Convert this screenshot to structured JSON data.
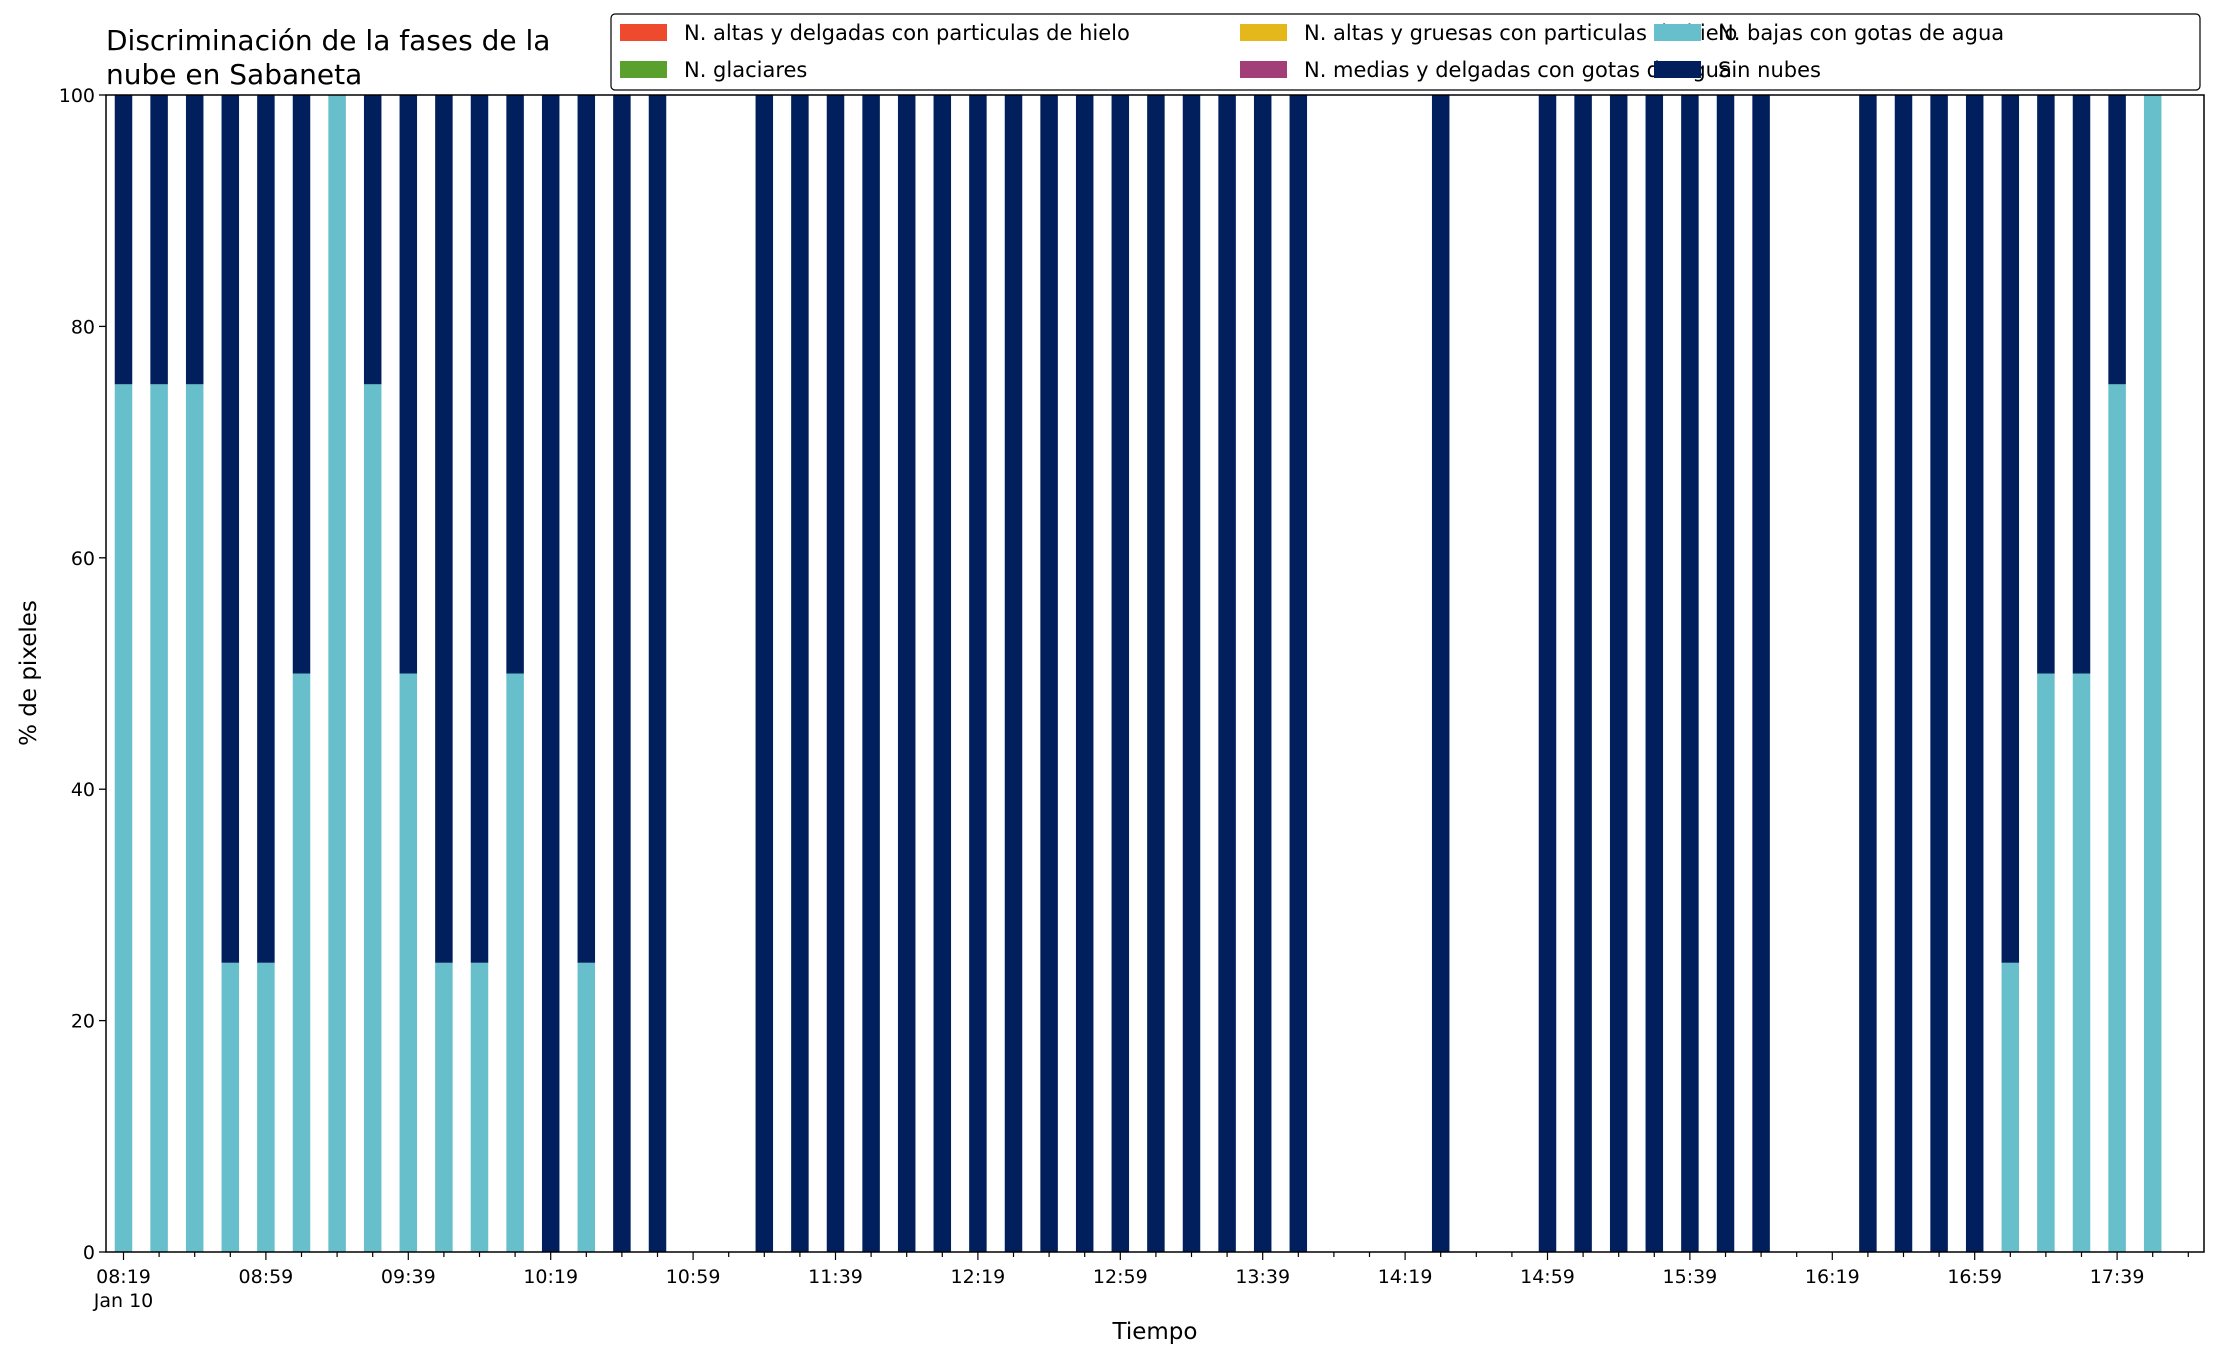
{
  "chart_data": {
    "type": "bar",
    "stacked": true,
    "title": [
      "Discriminación de la fases de la",
      "nube en Sabaneta"
    ],
    "xlabel": "Tiempo",
    "ylabel": "% de pixeles",
    "ylim": [
      0,
      100
    ],
    "yticks": [
      0,
      20,
      40,
      60,
      80,
      100
    ],
    "grid": false,
    "legend_position": "top-right",
    "legend_columns": 3,
    "x_tick_labels": [
      "08:19",
      "08:59",
      "09:39",
      "10:19",
      "10:59",
      "11:39",
      "12:19",
      "12:59",
      "13:39",
      "14:19",
      "14:59",
      "15:39",
      "16:19",
      "16:59",
      "17:39"
    ],
    "x_tick_sublabel": "Jan 10",
    "categories": [
      "08:19",
      "08:29",
      "08:39",
      "08:49",
      "08:59",
      "09:09",
      "09:19",
      "09:29",
      "09:39",
      "09:49",
      "09:59",
      "10:09",
      "10:19",
      "10:29",
      "10:39",
      "10:49",
      "10:59",
      "11:09",
      "11:19",
      "11:29",
      "11:39",
      "11:49",
      "11:59",
      "12:09",
      "12:19",
      "12:29",
      "12:39",
      "12:49",
      "12:59",
      "13:09",
      "13:19",
      "13:29",
      "13:39",
      "13:49",
      "13:59",
      "14:09",
      "14:19",
      "14:29",
      "14:39",
      "14:49",
      "14:59",
      "15:09",
      "15:19",
      "15:29",
      "15:39",
      "15:49",
      "15:59",
      "16:09",
      "16:19",
      "16:29",
      "16:39",
      "16:49",
      "16:59",
      "17:09",
      "17:19",
      "17:29",
      "17:39",
      "17:49"
    ],
    "series": [
      {
        "name": "N. altas y delgadas con particulas de hielo",
        "color": "#ee4a2d",
        "values": [
          0,
          0,
          0,
          0,
          0,
          0,
          0,
          0,
          0,
          0,
          0,
          0,
          0,
          0,
          0,
          0,
          0,
          0,
          0,
          0,
          0,
          0,
          0,
          0,
          0,
          0,
          0,
          0,
          0,
          0,
          0,
          0,
          0,
          0,
          0,
          0,
          0,
          0,
          0,
          0,
          0,
          0,
          0,
          0,
          0,
          0,
          0,
          0,
          0,
          0,
          0,
          0,
          0,
          0,
          0,
          0,
          0,
          0
        ]
      },
      {
        "name": "N. altas y gruesas con particulas de hielo",
        "color": "#e4b71b",
        "values": [
          0,
          0,
          0,
          0,
          0,
          0,
          0,
          0,
          0,
          0,
          0,
          0,
          0,
          0,
          0,
          0,
          0,
          0,
          0,
          0,
          0,
          0,
          0,
          0,
          0,
          0,
          0,
          0,
          0,
          0,
          0,
          0,
          0,
          0,
          0,
          0,
          0,
          0,
          0,
          0,
          0,
          0,
          0,
          0,
          0,
          0,
          0,
          0,
          0,
          0,
          0,
          0,
          0,
          0,
          0,
          0,
          0,
          0
        ]
      },
      {
        "name": "N. bajas con gotas de agua",
        "color": "#66bfcb",
        "values": [
          75,
          75,
          75,
          25,
          25,
          50,
          100,
          75,
          50,
          25,
          25,
          50,
          0,
          25,
          0,
          0,
          0,
          0,
          0,
          0,
          0,
          0,
          0,
          0,
          0,
          0,
          0,
          0,
          0,
          0,
          0,
          0,
          0,
          0,
          0,
          0,
          0,
          0,
          0,
          0,
          0,
          0,
          0,
          0,
          0,
          0,
          0,
          0,
          0,
          0,
          0,
          0,
          0,
          25,
          50,
          50,
          75,
          100
        ]
      },
      {
        "name": "N. glaciares",
        "color": "#5aa02c",
        "values": [
          0,
          0,
          0,
          0,
          0,
          0,
          0,
          0,
          0,
          0,
          0,
          0,
          0,
          0,
          0,
          0,
          0,
          0,
          0,
          0,
          0,
          0,
          0,
          0,
          0,
          0,
          0,
          0,
          0,
          0,
          0,
          0,
          0,
          0,
          0,
          0,
          0,
          0,
          0,
          0,
          0,
          0,
          0,
          0,
          0,
          0,
          0,
          0,
          0,
          0,
          0,
          0,
          0,
          0,
          0,
          0,
          0,
          0
        ]
      },
      {
        "name": "N. medias y delgadas con gotas de agua",
        "color": "#a23e78",
        "values": [
          0,
          0,
          0,
          0,
          0,
          0,
          0,
          0,
          0,
          0,
          0,
          0,
          0,
          0,
          0,
          0,
          0,
          0,
          0,
          0,
          0,
          0,
          0,
          0,
          0,
          0,
          0,
          0,
          0,
          0,
          0,
          0,
          0,
          0,
          0,
          0,
          0,
          0,
          0,
          0,
          0,
          0,
          0,
          0,
          0,
          0,
          0,
          0,
          0,
          0,
          0,
          0,
          0,
          0,
          0,
          0,
          0,
          0
        ]
      },
      {
        "name": "Sin nubes",
        "color": "#001f5c",
        "values": [
          25,
          25,
          25,
          75,
          75,
          50,
          0,
          25,
          50,
          75,
          75,
          50,
          100,
          75,
          100,
          100,
          0,
          0,
          100,
          100,
          100,
          100,
          100,
          100,
          100,
          100,
          100,
          100,
          100,
          100,
          100,
          100,
          100,
          100,
          0,
          0,
          0,
          100,
          0,
          0,
          100,
          100,
          100,
          100,
          100,
          100,
          100,
          0,
          0,
          100,
          100,
          100,
          100,
          75,
          50,
          50,
          25,
          0
        ]
      }
    ]
  }
}
